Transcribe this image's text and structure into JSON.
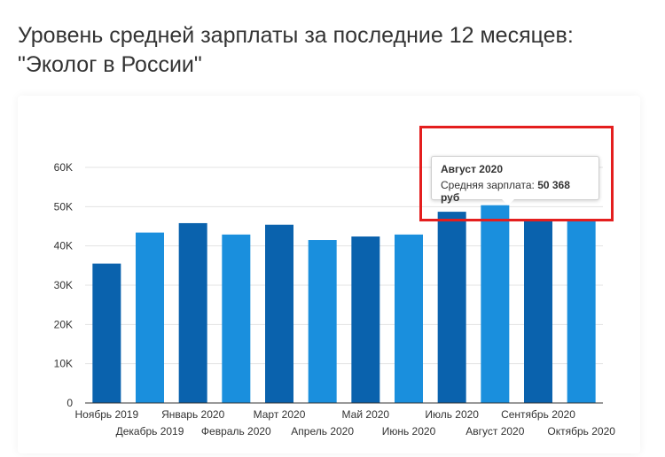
{
  "title_line1": "Уровень средней зарплаты за последние 12 месяцев:",
  "title_line2": "\"Эколог в России\"",
  "tooltip": {
    "month": "Август 2020",
    "label": "Средняя зарплата:",
    "value": "50 368 руб"
  },
  "colors": {
    "dark": "#0a62ad",
    "light": "#1a8fdd",
    "highlight": "#e41e1e"
  },
  "chart_data": {
    "type": "bar",
    "title": "Уровень средней зарплаты за последние 12 месяцев: \"Эколог в России\"",
    "categories": [
      "Ноябрь 2019",
      "Декабрь 2019",
      "Январь 2020",
      "Февраль 2020",
      "Март 2020",
      "Апрель 2020",
      "Май 2020",
      "Июнь 2020",
      "Июль 2020",
      "Август 2020",
      "Сентябрь 2020",
      "Октябрь 2020"
    ],
    "values": [
      35500,
      43400,
      45800,
      42900,
      45400,
      41500,
      42400,
      42900,
      48700,
      50368,
      46500,
      46500
    ],
    "yticks": [
      "0",
      "10K",
      "20K",
      "30K",
      "40K",
      "50K",
      "60K"
    ],
    "ylim": [
      0,
      60000
    ],
    "grid": true,
    "legend": "none"
  }
}
